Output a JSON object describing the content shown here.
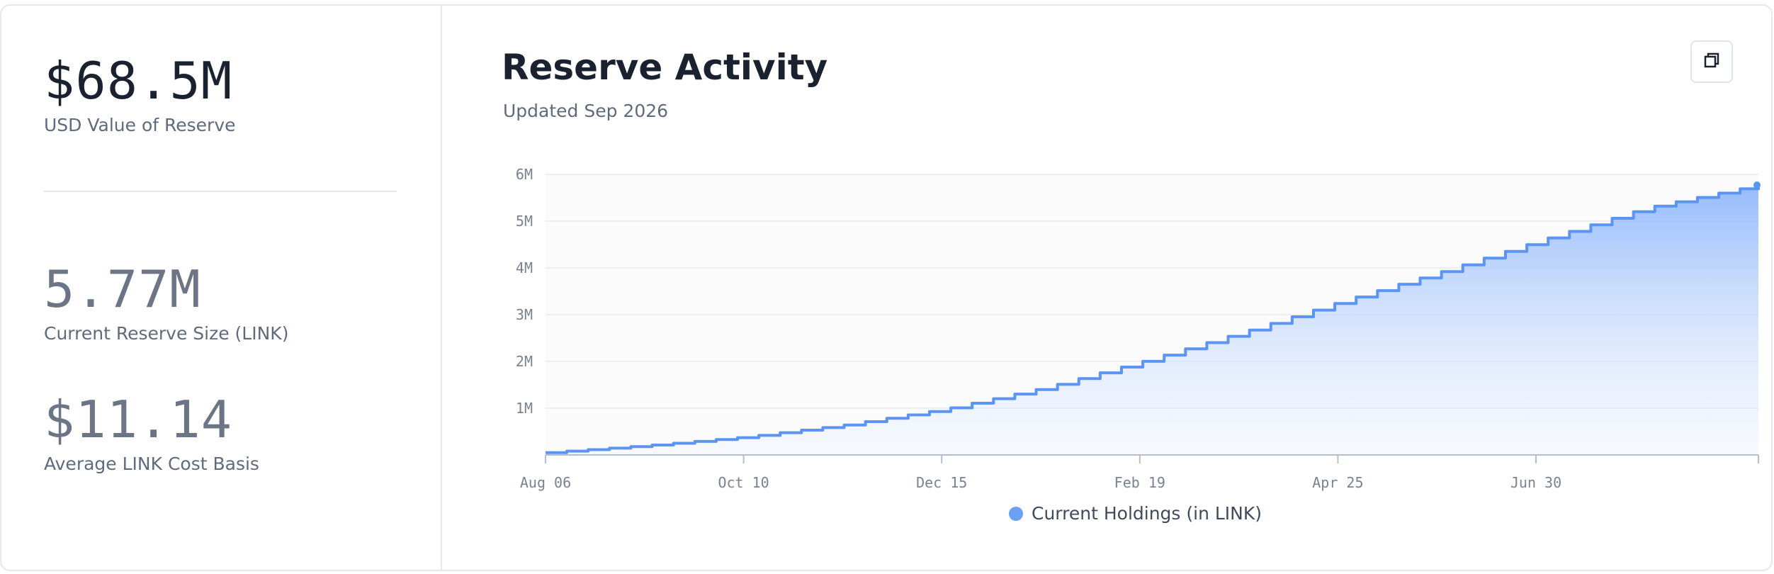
{
  "stats": {
    "usd_value": "$68.5M",
    "usd_label": "USD Value of Reserve",
    "reserve_size": "5.77M",
    "reserve_label": "Current Reserve Size (LINK)",
    "cost_basis": "$11.14",
    "cost_label": "Average LINK Cost Basis"
  },
  "header": {
    "title": "Reserve Activity",
    "subtitle": "Updated Sep 2026",
    "expand_icon": "expand-icon"
  },
  "colors": {
    "line": "#5b94f2",
    "fill_top": "#8fb8fb",
    "legend_dot": "#6aa0f6"
  },
  "chart_data": {
    "type": "area",
    "title": "",
    "xlabel": "",
    "ylabel": "",
    "y_ticks": [
      "6M",
      "5M",
      "4M",
      "3M",
      "2M",
      "1M"
    ],
    "y_tick_values": [
      6000000,
      5000000,
      4000000,
      3000000,
      2000000,
      1000000
    ],
    "ylim": [
      0,
      6000000
    ],
    "x_ticks": [
      "Aug 06",
      "Oct 10",
      "Dec 15",
      "Feb 19",
      "Apr 25",
      "Jun 30"
    ],
    "x_start": "2025-08-06",
    "x_end": "2026-09-08",
    "grid": true,
    "legend_position": "bottom",
    "series": [
      {
        "name": "Current Holdings (in LINK)",
        "step": "weekly",
        "x": [
          "2025-08-06",
          "2025-09-08",
          "2025-10-10",
          "2025-11-12",
          "2025-12-15",
          "2026-01-17",
          "2026-02-19",
          "2026-03-24",
          "2026-04-25",
          "2026-05-28",
          "2026-06-30",
          "2026-08-02",
          "2026-09-08"
        ],
        "values": [
          50000,
          200000,
          380000,
          640000,
          980000,
          1440000,
          2020000,
          2650000,
          3300000,
          3940000,
          4620000,
          5280000,
          5770000
        ]
      }
    ]
  }
}
